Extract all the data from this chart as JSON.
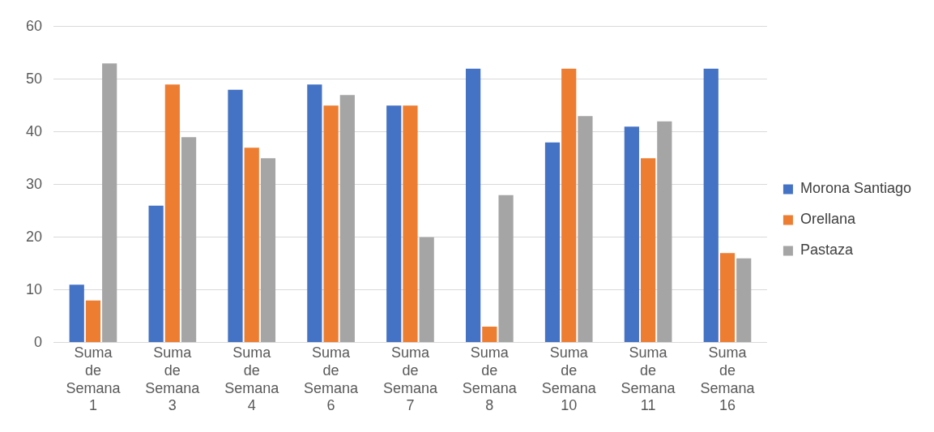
{
  "chart_data": {
    "type": "bar",
    "categories": [
      "Suma de Semana 1",
      "Suma de Semana 3",
      "Suma de Semana 4",
      "Suma de Semana 6",
      "Suma de Semana 7",
      "Suma de Semana 8",
      "Suma de Semana 10",
      "Suma de Semana 11",
      "Suma de Semana 16"
    ],
    "series": [
      {
        "name": "Morona Santiago",
        "color": "#4472c4",
        "values": [
          11,
          26,
          48,
          49,
          45,
          52,
          38,
          41,
          52
        ]
      },
      {
        "name": "Orellana",
        "color": "#ed7d31",
        "values": [
          8,
          49,
          37,
          45,
          45,
          3,
          52,
          35,
          17
        ]
      },
      {
        "name": "Pastaza",
        "color": "#a5a5a5",
        "values": [
          53,
          39,
          35,
          47,
          20,
          28,
          43,
          42,
          16
        ]
      }
    ],
    "ylim": [
      0,
      60
    ],
    "yticks": [
      0,
      10,
      20,
      30,
      40,
      50,
      60
    ],
    "grid": "y",
    "legend": "right"
  }
}
